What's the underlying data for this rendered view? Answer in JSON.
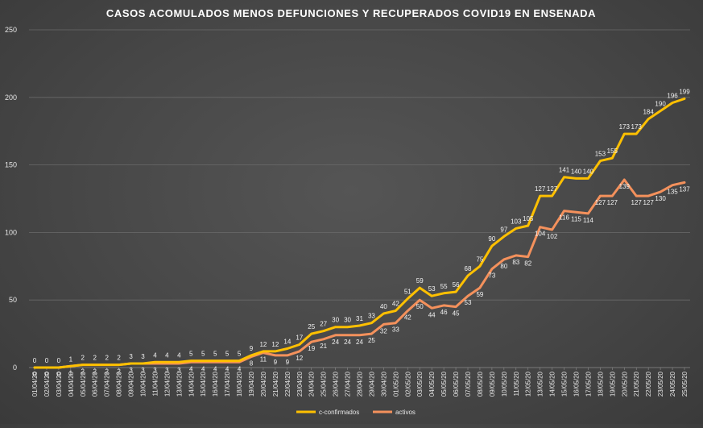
{
  "chart_data": {
    "type": "line",
    "title": "CASOS ACOMULADOS  MENOS DEFUNCIONES Y RECUPERADOS COVID19 EN ENSENADA",
    "xlabel": "",
    "ylabel": "",
    "ylim": [
      0,
      250
    ],
    "yticks": [
      0,
      50,
      100,
      150,
      200,
      250
    ],
    "grid": "horizontal",
    "legend_position": "bottom",
    "x": [
      "01/04/20",
      "02/04/20",
      "03/04/20",
      "04/04/20",
      "05/04/20",
      "06/04/20",
      "07/04/20",
      "08/04/20",
      "09/04/20",
      "10/04/20",
      "11/04/20",
      "12/04/20",
      "13/04/20",
      "14/04/20",
      "15/04/20",
      "16/04/20",
      "17/04/20",
      "18/04/20",
      "19/04/20",
      "20/04/20",
      "21/04/20",
      "22/04/20",
      "23/04/20",
      "24/04/20",
      "25/04/20",
      "26/04/20",
      "27/04/20",
      "28/04/20",
      "29/04/20",
      "30/04/20",
      "01/05/20",
      "02/05/20",
      "03/05/20",
      "04/05/20",
      "05/05/20",
      "06/05/20",
      "07/05/20",
      "08/05/20",
      "09/05/20",
      "10/05/20",
      "11/05/20",
      "12/05/20",
      "13/05/20",
      "14/05/20",
      "15/05/20",
      "16/05/20",
      "17/05/20",
      "18/05/20",
      "19/05/20",
      "20/05/20",
      "21/05/20",
      "22/05/20",
      "23/05/20",
      "24/05/20",
      "25/05/20"
    ],
    "series": [
      {
        "name": "c-confirmados",
        "color": "#ffc000",
        "values": [
          0,
          0,
          0,
          1,
          2,
          2,
          2,
          2,
          3,
          3,
          4,
          4,
          4,
          5,
          5,
          5,
          5,
          5,
          9,
          12,
          12,
          14,
          17,
          25,
          27,
          30,
          30,
          31,
          33,
          40,
          42,
          51,
          59,
          53,
          55,
          56,
          68,
          75,
          90,
          97,
          103,
          105,
          127,
          127,
          141,
          140,
          140,
          153,
          155,
          173,
          173,
          184,
          190,
          196,
          199
        ]
      },
      {
        "name": "activos",
        "color": "#f4915c",
        "values": [
          0,
          0,
          0,
          1,
          2,
          2,
          2,
          2,
          3,
          3,
          3,
          3,
          3,
          4,
          4,
          4,
          4,
          4,
          8,
          11,
          9,
          9,
          12,
          19,
          21,
          24,
          24,
          24,
          25,
          32,
          33,
          42,
          50,
          44,
          46,
          45,
          53,
          59,
          73,
          80,
          83,
          82,
          104,
          102,
          116,
          115,
          114,
          127,
          127,
          139,
          127,
          127,
          130,
          135,
          137
        ]
      }
    ]
  }
}
